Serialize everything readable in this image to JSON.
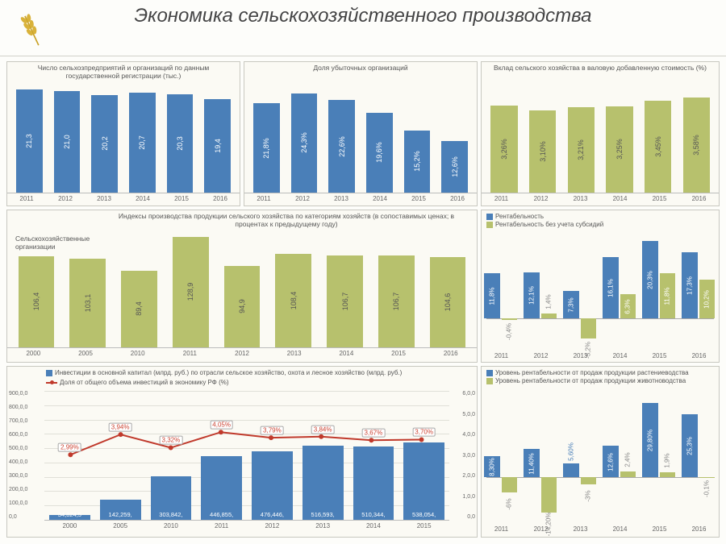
{
  "title": "Экономика сельскохозяйственного производства",
  "colors": {
    "blue": "#4a7fb8",
    "olive": "#b7c16d",
    "red": "#c0392b",
    "panel_border": "#c8c8c0",
    "panel_bg": "#fbfaf4",
    "grid_line": "#d8d8d0"
  },
  "panels": {
    "p1": {
      "title": "Число сельхозпредприятий и организаций по данным государственной регистрации (тыс.)",
      "type": "bar",
      "categories": [
        "2011",
        "2012",
        "2013",
        "2014",
        "2015",
        "2016"
      ],
      "values": [
        21.3,
        21.0,
        20.2,
        20.7,
        20.3,
        19.4
      ],
      "labels": [
        "21,3",
        "21,0",
        "20,2",
        "20,7",
        "20,3",
        "19,4"
      ],
      "color": "#4a7fb8",
      "ylim": [
        0,
        22
      ],
      "label_color": "#fff"
    },
    "p2": {
      "title": "Доля убыточных организаций",
      "type": "bar",
      "categories": [
        "2011",
        "2012",
        "2013",
        "2014",
        "2015",
        "2016"
      ],
      "values": [
        21.8,
        24.3,
        22.6,
        19.6,
        15.2,
        12.6
      ],
      "labels": [
        "21,8%",
        "24,3%",
        "22,6%",
        "19,6%",
        "15,2%",
        "12,6%"
      ],
      "color": "#4a7fb8",
      "ylim": [
        0,
        26
      ],
      "label_color": "#fff"
    },
    "p3": {
      "title": "Вклад сельского хозяйства в валовую добавленную стоимость (%)",
      "type": "bar",
      "categories": [
        "2011",
        "2012",
        "2013",
        "2014",
        "2015",
        "2016"
      ],
      "values": [
        3.26,
        3.1,
        3.21,
        3.25,
        3.45,
        3.58
      ],
      "labels": [
        "3,26%",
        "3,10%",
        "3,21%",
        "3,25%",
        "3,45%",
        "3,58%"
      ],
      "color": "#b7c16d",
      "ylim": [
        0,
        4.0
      ],
      "label_color": "#555"
    },
    "p4": {
      "title": "Индексы производства продукции сельского хозяйства по категориям хозяйств (в сопоставимых ценах; в процентах к предыдущему году)",
      "subtitle": "Сельскохозяйственные организации",
      "type": "bar",
      "categories": [
        "2000",
        "2005",
        "2010",
        "2011",
        "2012",
        "2013",
        "2014",
        "2015",
        "2016"
      ],
      "values": [
        106.4,
        103.1,
        89.4,
        128.9,
        94.9,
        108.4,
        106.7,
        106.7,
        104.6
      ],
      "labels": [
        "106,4",
        "103,1",
        "89,4",
        "128,9",
        "94,9",
        "108,4",
        "106,7",
        "106,7",
        "104,6"
      ],
      "color": "#b7c16d",
      "ylim": [
        0,
        135
      ],
      "label_color": "#555"
    },
    "p5": {
      "type": "grouped-bar",
      "legend": [
        "Рентабельность",
        "Рентабельность без учета субсидий"
      ],
      "legend_colors": [
        "#4a7fb8",
        "#b7c16d"
      ],
      "categories": [
        "2011",
        "2012",
        "2013",
        "2014",
        "2015",
        "2016"
      ],
      "series1": [
        11.8,
        12.1,
        7.3,
        16.1,
        20.3,
        17.3
      ],
      "series1_labels": [
        "11,8%",
        "12,1%",
        "7,3%",
        "16,1%",
        "20,3%",
        "17,3%"
      ],
      "series2": [
        -0.4,
        1.4,
        -5.2,
        6.3,
        11.8,
        10.2
      ],
      "series2_labels": [
        "-0,4%",
        "1,4%",
        "-5,2%",
        "6,3%",
        "11,8%",
        "10,2%"
      ],
      "ylim": [
        -8,
        22
      ]
    },
    "p6": {
      "type": "combo",
      "legend_bar": "Инвестиции в основной капитал (млрд. руб.) по отрасли сельское хозяйство, охота и лесное хозяйство (млрд. руб.)",
      "legend_line": "Доля от общего объема инвестиций в экономику РФ (%)",
      "categories": [
        "2000",
        "2005",
        "2010",
        "2011",
        "2012",
        "2013",
        "2014",
        "2015"
      ],
      "bar_values": [
        34.8,
        142.3,
        303.8,
        446.9,
        476.4,
        516.6,
        510.3,
        538.1
      ],
      "bar_labels": [
        "34,824,5",
        "142,259,",
        "303,842,",
        "446,855,",
        "476,446,",
        "516,593,",
        "510,344,",
        "538,054,"
      ],
      "bar_color": "#4a7fb8",
      "line_values": [
        2.99,
        3.94,
        3.32,
        4.05,
        3.79,
        3.84,
        3.67,
        3.7
      ],
      "line_labels": [
        "2,99%",
        "3,94%",
        "3,32%",
        "4,05%",
        "3,79%",
        "3,84%",
        "3,67%",
        "3,70%"
      ],
      "line_color": "#c0392b",
      "ylim_left": [
        0,
        900
      ],
      "yticks_left": [
        "0,0",
        "100,0,0",
        "200,0,0",
        "300,0,0",
        "400,0,0",
        "500,0,0",
        "600,0,0",
        "700,0,0",
        "800,0,0",
        "900,0,0"
      ],
      "ylim_right": [
        0,
        6
      ],
      "yticks_right": [
        "0,0",
        "1,0,0",
        "2,0,0",
        "3,0,0",
        "4,0,0",
        "5,0,0",
        "6,0,0"
      ]
    },
    "p7": {
      "type": "grouped-bar",
      "legend": [
        "Уровень рентабельности от продаж продукции растениеводства",
        "Уровень рентабельности от продаж продукции животноводства"
      ],
      "legend_colors": [
        "#4a7fb8",
        "#b7c16d"
      ],
      "categories": [
        "2011",
        "2012",
        "2013",
        "2014",
        "2015",
        "2016"
      ],
      "series1": [
        8.3,
        11.4,
        5.6,
        12.6,
        29.8,
        25.3
      ],
      "series1_labels": [
        "8,30%",
        "11,40%",
        "5,60%",
        "12,6%",
        "29,80%",
        "25,3%"
      ],
      "series2": [
        -6,
        -14.2,
        -3,
        2.4,
        1.9,
        -0.1
      ],
      "series2_labels": [
        "-6%",
        "-14,20%",
        "-3%",
        "2,4%",
        "1,9%",
        "-0,1%"
      ],
      "ylim": [
        -18,
        32
      ]
    }
  }
}
